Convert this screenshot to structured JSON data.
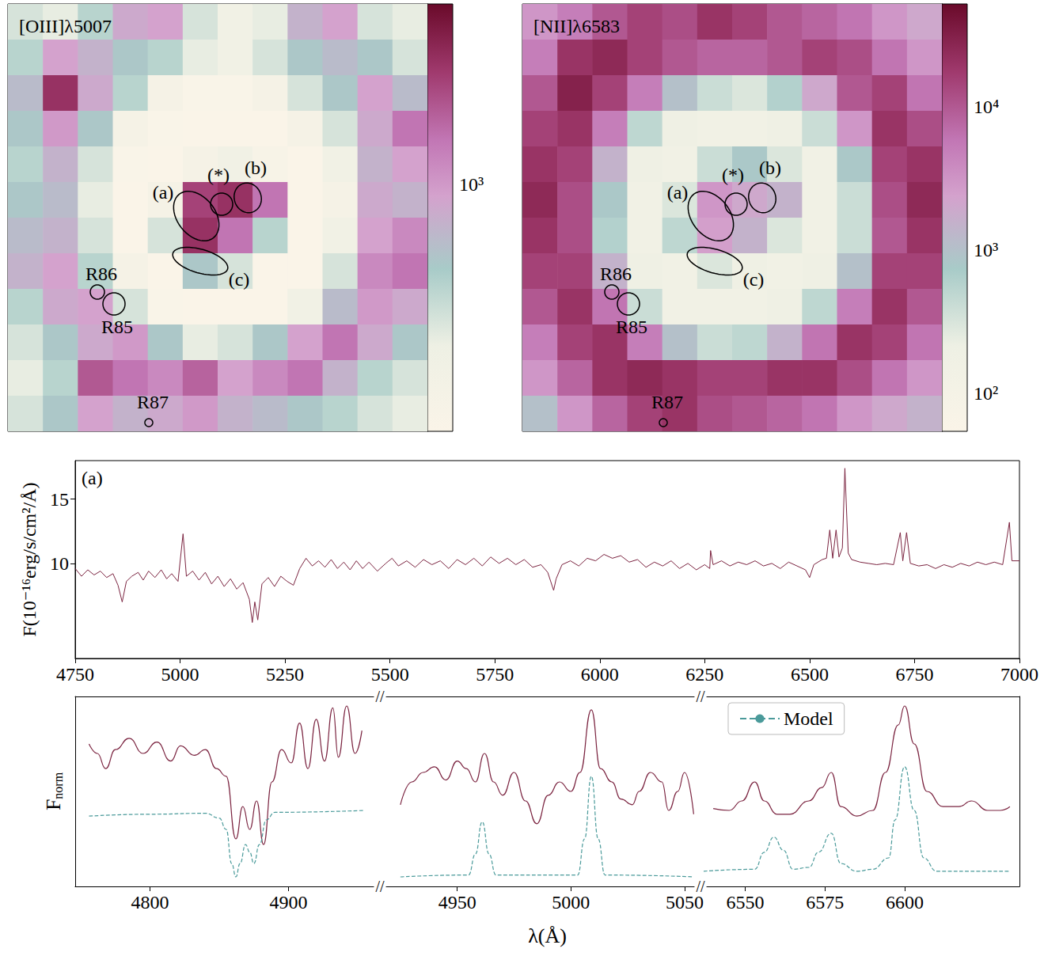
{
  "chart_data": [
    {
      "type": "heatmap",
      "title": "[OIII]λ5007",
      "log": true,
      "cells": [
        [
          300,
          250,
          400,
          800,
          900,
          300,
          200,
          250,
          700,
          900,
          300,
          250
        ],
        [
          400,
          900,
          700,
          500,
          400,
          250,
          200,
          300,
          500,
          600,
          500,
          300
        ],
        [
          600,
          3000,
          800,
          400,
          150,
          120,
          120,
          150,
          300,
          500,
          900,
          600
        ],
        [
          500,
          1000,
          500,
          150,
          120,
          110,
          110,
          110,
          150,
          300,
          800,
          1500
        ],
        [
          400,
          700,
          300,
          120,
          110,
          150,
          200,
          130,
          110,
          200,
          700,
          900
        ],
        [
          500,
          600,
          250,
          110,
          150,
          2500,
          3000,
          1500,
          110,
          150,
          800,
          700
        ],
        [
          600,
          700,
          300,
          110,
          300,
          3000,
          1500,
          400,
          110,
          200,
          900,
          1200
        ],
        [
          700,
          900,
          400,
          150,
          110,
          500,
          300,
          110,
          110,
          300,
          1200,
          1500
        ],
        [
          400,
          800,
          900,
          300,
          120,
          110,
          110,
          110,
          200,
          600,
          1000,
          800
        ],
        [
          300,
          500,
          800,
          1000,
          500,
          250,
          300,
          500,
          900,
          1500,
          800,
          500
        ],
        [
          250,
          400,
          2000,
          1500,
          1200,
          1800,
          900,
          1200,
          1500,
          700,
          400,
          300
        ],
        [
          300,
          500,
          900,
          700,
          800,
          1000,
          700,
          600,
          500,
          400,
          300,
          250
        ]
      ],
      "colorbar": {
        "range": [
          110,
          5000
        ],
        "ticks": [
          {
            "value": 1000,
            "label": "10³"
          }
        ]
      },
      "annotations": [
        "(a)",
        "(*)",
        "(b)",
        "(c)",
        "R86",
        "R85",
        "R87"
      ]
    },
    {
      "type": "heatmap",
      "title": "[NII]λ6583",
      "log": true,
      "cells": [
        [
          3000,
          5000,
          10000,
          15000,
          12000,
          20000,
          15000,
          10000,
          8000,
          6000,
          3000,
          2000
        ],
        [
          5000,
          20000,
          25000,
          15000,
          10000,
          8000,
          8000,
          10000,
          15000,
          12000,
          6000,
          3000
        ],
        [
          10000,
          30000,
          15000,
          5000,
          1000,
          400,
          300,
          600,
          2000,
          10000,
          15000,
          6000
        ],
        [
          15000,
          20000,
          5000,
          500,
          200,
          150,
          150,
          200,
          400,
          3000,
          20000,
          12000
        ],
        [
          20000,
          15000,
          1500,
          200,
          150,
          400,
          800,
          300,
          150,
          800,
          15000,
          20000
        ],
        [
          25000,
          12000,
          800,
          150,
          300,
          3000,
          2000,
          1500,
          150,
          400,
          12000,
          25000
        ],
        [
          20000,
          12000,
          600,
          150,
          500,
          2500,
          1500,
          300,
          150,
          400,
          10000,
          20000
        ],
        [
          15000,
          15000,
          1500,
          200,
          150,
          300,
          200,
          150,
          200,
          1000,
          15000,
          15000
        ],
        [
          10000,
          20000,
          6000,
          400,
          150,
          150,
          150,
          200,
          500,
          5000,
          20000,
          10000
        ],
        [
          5000,
          15000,
          20000,
          5000,
          1000,
          400,
          500,
          1500,
          6000,
          20000,
          15000,
          6000
        ],
        [
          3000,
          8000,
          20000,
          25000,
          20000,
          15000,
          15000,
          20000,
          20000,
          12000,
          6000,
          3000
        ],
        [
          1000,
          3000,
          8000,
          15000,
          20000,
          12000,
          10000,
          8000,
          6000,
          3000,
          2000,
          1500
        ]
      ],
      "colorbar": {
        "range": [
          54,
          52000
        ],
        "ticks": [
          {
            "value": 100,
            "label": "10²"
          },
          {
            "value": 1000,
            "label": "10³"
          },
          {
            "value": 10000,
            "label": "10⁴"
          }
        ]
      },
      "annotations": [
        "(a)",
        "(*)",
        "(b)",
        "(c)",
        "R86",
        "R85",
        "R87"
      ]
    },
    {
      "type": "line",
      "annotations": [
        "(a)"
      ],
      "ylabel": "F(10⁻¹⁶erg/s/cm²/Å)",
      "color": "#7b2440",
      "grid": false,
      "xlim": [
        4750,
        7000
      ],
      "xticks": [
        4750,
        5000,
        5250,
        5500,
        5750,
        6000,
        6250,
        6500,
        6750,
        7000
      ],
      "ylim": [
        2.6,
        18
      ],
      "yticks": [
        10,
        15
      ],
      "x": [
        4750,
        4765,
        4780,
        4795,
        4810,
        4825,
        4840,
        4852,
        4862,
        4872,
        4885,
        4900,
        4912,
        4925,
        4940,
        4955,
        4968,
        4980,
        4995,
        5007,
        5015,
        5030,
        5045,
        5060,
        5075,
        5090,
        5105,
        5120,
        5135,
        5150,
        5165,
        5172,
        5178,
        5185,
        5195,
        5210,
        5225,
        5240,
        5255,
        5270,
        5285,
        5300,
        5315,
        5330,
        5345,
        5360,
        5375,
        5390,
        5405,
        5420,
        5435,
        5450,
        5470,
        5490,
        5505,
        5520,
        5540,
        5560,
        5580,
        5600,
        5620,
        5640,
        5660,
        5680,
        5700,
        5720,
        5740,
        5760,
        5780,
        5800,
        5820,
        5840,
        5860,
        5876,
        5890,
        5896,
        5910,
        5930,
        5950,
        5970,
        5990,
        6010,
        6030,
        6050,
        6070,
        6090,
        6110,
        6130,
        6150,
        6170,
        6190,
        6210,
        6230,
        6250,
        6262,
        6264,
        6270,
        6290,
        6310,
        6330,
        6350,
        6370,
        6390,
        6410,
        6430,
        6450,
        6470,
        6490,
        6500,
        6510,
        6530,
        6540,
        6548,
        6555,
        6563,
        6570,
        6578,
        6584,
        6592,
        6600,
        6620,
        6640,
        6660,
        6680,
        6700,
        6716,
        6722,
        6731,
        6740,
        6760,
        6780,
        6800,
        6820,
        6840,
        6860,
        6880,
        6900,
        6920,
        6940,
        6960,
        6976,
        6982,
        7000
      ],
      "values": [
        9.6,
        9.0,
        9.5,
        9.1,
        9.4,
        8.9,
        9.2,
        8.3,
        7.0,
        8.6,
        9.0,
        9.3,
        8.7,
        9.4,
        8.9,
        9.5,
        8.8,
        9.2,
        8.6,
        12.3,
        9.0,
        9.4,
        8.7,
        9.3,
        8.4,
        9.0,
        8.2,
        8.8,
        8.0,
        8.5,
        7.2,
        5.4,
        7.0,
        5.6,
        8.4,
        8.9,
        8.2,
        9.0,
        8.6,
        8.3,
        9.6,
        10.4,
        9.8,
        10.2,
        9.7,
        10.3,
        9.6,
        10.1,
        9.5,
        10.2,
        9.6,
        10.1,
        9.4,
        10.0,
        10.4,
        9.8,
        10.2,
        9.7,
        10.3,
        9.9,
        10.2,
        9.6,
        10.3,
        9.9,
        10.4,
        9.8,
        10.5,
        10.0,
        10.4,
        9.9,
        10.3,
        9.7,
        9.9,
        9.3,
        7.9,
        8.8,
        9.9,
        10.2,
        9.8,
        10.4,
        10.2,
        10.7,
        10.4,
        10.6,
        10.1,
        10.3,
        9.7,
        10.1,
        9.8,
        10.2,
        9.6,
        10.0,
        9.5,
        9.9,
        9.6,
        11.0,
        9.9,
        10.2,
        9.8,
        10.1,
        9.9,
        10.2,
        9.8,
        10.0,
        9.6,
        10.1,
        9.8,
        9.5,
        8.9,
        9.9,
        10.3,
        10.4,
        12.6,
        10.4,
        12.6,
        10.5,
        11.2,
        17.4,
        10.8,
        10.3,
        10.1,
        10.0,
        9.9,
        10.0,
        9.9,
        12.4,
        10.2,
        12.4,
        10.0,
        9.8,
        9.9,
        9.6,
        9.9,
        9.7,
        10.0,
        9.8,
        10.1,
        9.9,
        10.1,
        9.9,
        13.2,
        10.2,
        10.2
      ]
    },
    {
      "type": "line",
      "xlabel": "λ(Å)",
      "ylabel": {
        "text": "F",
        "subscript": "norm"
      },
      "break_mark": "//",
      "tick_labels": "x",
      "legend": "upper right",
      "ylim": [
        0,
        1
      ],
      "segments": [
        {
          "xlim": [
            4746,
            4966
          ],
          "xticks": [
            4800,
            4900
          ],
          "series": [
            {
              "color": "#7b2440",
              "line_style": "solid",
              "x": [
                4756,
                4762,
                4768,
                4775,
                4785,
                4795,
                4805,
                4815,
                4822,
                4832,
                4840,
                4848,
                4855,
                4862,
                4867,
                4872,
                4877,
                4882,
                4888,
                4895,
                4902,
                4908,
                4914,
                4920,
                4926,
                4932,
                4936,
                4942,
                4948,
                4953
              ],
              "values": [
                0.75,
                0.7,
                0.62,
                0.72,
                0.78,
                0.7,
                0.76,
                0.66,
                0.74,
                0.69,
                0.72,
                0.62,
                0.58,
                0.25,
                0.42,
                0.3,
                0.45,
                0.22,
                0.55,
                0.72,
                0.65,
                0.86,
                0.62,
                0.88,
                0.66,
                0.94,
                0.68,
                0.95,
                0.7,
                0.82
              ]
            },
            {
              "name": "Model",
              "color": "#4a9a9a",
              "line_style": "dashed",
              "x": [
                4756,
                4800,
                4840,
                4850,
                4855,
                4859,
                4862,
                4865,
                4869,
                4872,
                4875,
                4879,
                4884,
                4890,
                4955
              ],
              "values": [
                0.37,
                0.38,
                0.385,
                0.36,
                0.3,
                0.12,
                0.05,
                0.12,
                0.22,
                0.18,
                0.12,
                0.22,
                0.35,
                0.39,
                0.4
              ]
            }
          ]
        },
        {
          "xlim": [
            4916,
            5057
          ],
          "xticks": [
            4950,
            5000,
            5050
          ],
          "series": [
            {
              "color": "#7b2440",
              "line_style": "solid",
              "x": [
                4925,
                4930,
                4935,
                4940,
                4945,
                4950,
                4954,
                4958,
                4962,
                4966,
                4970,
                4975,
                4980,
                4985,
                4990,
                4995,
                5000,
                5004,
                5009,
                5013,
                5018,
                5022,
                5027,
                5030,
                5035,
                5040,
                5043,
                5047,
                5050,
                5054
              ],
              "values": [
                0.43,
                0.55,
                0.6,
                0.63,
                0.56,
                0.66,
                0.62,
                0.55,
                0.7,
                0.55,
                0.48,
                0.6,
                0.45,
                0.33,
                0.48,
                0.55,
                0.5,
                0.6,
                0.93,
                0.62,
                0.55,
                0.46,
                0.43,
                0.5,
                0.6,
                0.55,
                0.4,
                0.5,
                0.6,
                0.38
              ]
            },
            {
              "name": "Model",
              "color": "#4a9a9a",
              "line_style": "dashed",
              "x": [
                4925,
                4955,
                4958,
                4961,
                4964,
                4967,
                5003,
                5006,
                5009,
                5012,
                5015,
                5054
              ],
              "values": [
                0.05,
                0.06,
                0.17,
                0.34,
                0.17,
                0.06,
                0.06,
                0.25,
                0.58,
                0.25,
                0.06,
                0.05
              ]
            }
          ]
        },
        {
          "xlim": [
            6536,
            6636
          ],
          "xticks": [
            6550,
            6575,
            6600
          ],
          "series": [
            {
              "color": "#7b2440",
              "line_style": "solid",
              "x": [
                6540,
                6545,
                6549,
                6553,
                6556,
                6560,
                6564,
                6570,
                6574,
                6577,
                6580,
                6585,
                6590,
                6594,
                6598,
                6600,
                6603,
                6607,
                6612,
                6617,
                6621,
                6626,
                6630,
                6633
              ],
              "values": [
                0.41,
                0.4,
                0.45,
                0.55,
                0.45,
                0.38,
                0.38,
                0.45,
                0.52,
                0.6,
                0.42,
                0.37,
                0.4,
                0.6,
                0.85,
                0.95,
                0.75,
                0.5,
                0.42,
                0.42,
                0.45,
                0.4,
                0.4,
                0.42
              ]
            },
            {
              "name": "Model",
              "color": "#4a9a9a",
              "line_style": "dashed",
              "x": [
                6537,
                6553,
                6556,
                6559,
                6562,
                6565,
                6570,
                6573,
                6577,
                6580,
                6585,
                6590,
                6595,
                6597,
                6600,
                6603,
                6606,
                6610,
                6633
              ],
              "values": [
                0.08,
                0.09,
                0.18,
                0.26,
                0.19,
                0.09,
                0.1,
                0.18,
                0.28,
                0.12,
                0.08,
                0.09,
                0.15,
                0.35,
                0.63,
                0.4,
                0.15,
                0.08,
                0.08
              ]
            }
          ]
        }
      ]
    }
  ]
}
